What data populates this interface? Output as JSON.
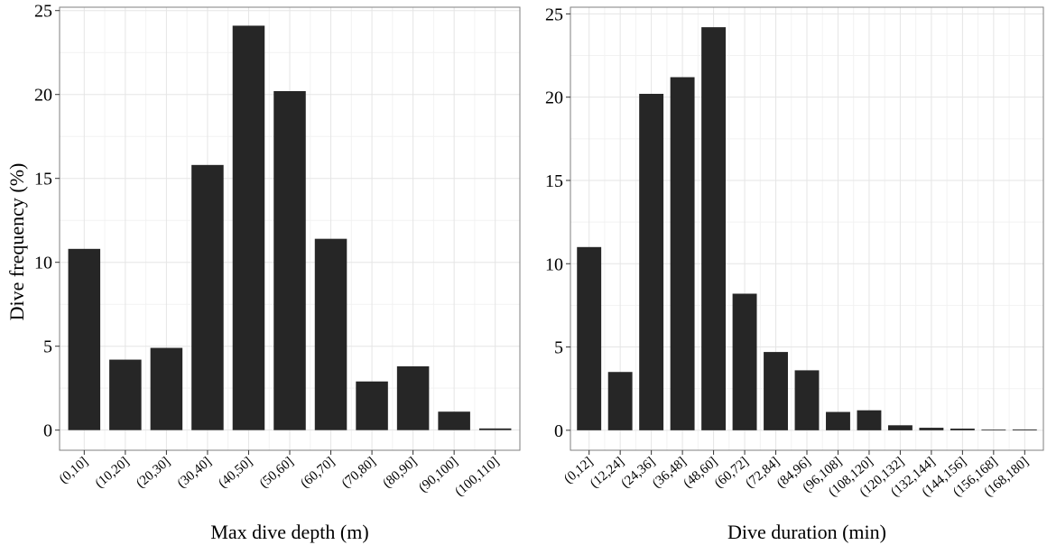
{
  "y_label": "Dive frequency (%)",
  "chart_data": [
    {
      "type": "bar",
      "title": "",
      "xlabel": "Max dive depth (m)",
      "ylabel": "Dive frequency (%)",
      "categories": [
        "(0,10]",
        "(10,20]",
        "(20,30]",
        "(30,40]",
        "(40,50]",
        "(50,60]",
        "(60,70]",
        "(70,80]",
        "(80,90]",
        "(90,100]",
        "(100,110]"
      ],
      "values": [
        10.8,
        4.2,
        4.9,
        15.8,
        24.1,
        20.2,
        11.4,
        2.9,
        3.8,
        1.1,
        0.1
      ],
      "ylim": [
        -1.2,
        25.2
      ],
      "yticks": [
        0,
        5,
        10,
        15,
        20,
        25
      ],
      "grid": true,
      "bar_color": "#262626"
    },
    {
      "type": "bar",
      "title": "",
      "xlabel": "Dive duration (min)",
      "ylabel": "",
      "categories": [
        "(0,12]",
        "(12,24]",
        "(24,36]",
        "(36,48]",
        "(48,60]",
        "(60,72]",
        "(72,84]",
        "(84,96]",
        "(96,108]",
        "(108,120]",
        "(120,132]",
        "(132,144]",
        "(144,156]",
        "(156,168]",
        "(168,180]"
      ],
      "values": [
        11.0,
        3.5,
        20.2,
        21.2,
        24.2,
        8.2,
        4.7,
        3.6,
        1.1,
        1.2,
        0.3,
        0.15,
        0.1,
        0.04,
        0.05
      ],
      "ylim": [
        -1.2,
        25.4
      ],
      "yticks": [
        0,
        5,
        10,
        15,
        20,
        25
      ],
      "grid": true,
      "bar_color": "#262626"
    }
  ]
}
